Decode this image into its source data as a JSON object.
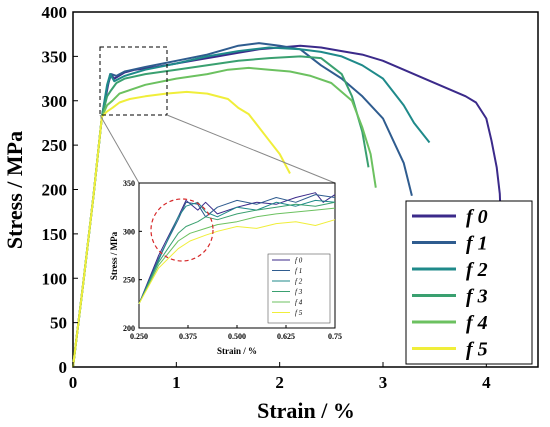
{
  "chart_data": [
    {
      "type": "line",
      "xlabel": "Strain / %",
      "ylabel": "Stress / MPa",
      "xlim": [
        0,
        4.5
      ],
      "ylim": [
        0,
        400
      ],
      "xticks": [
        "0",
        "1",
        "2",
        "3",
        "4"
      ],
      "yticks": [
        "0",
        "50",
        "100",
        "150",
        "200",
        "250",
        "300",
        "350",
        "400"
      ],
      "legend_position": "bottom-right",
      "grid": false,
      "series": [
        {
          "name": "f 0",
          "color": "#3b2a8a",
          "x": [
            0,
            0.1,
            0.2,
            0.28,
            0.33,
            0.36,
            0.4,
            0.5,
            0.6,
            0.8,
            1.0,
            1.2,
            1.4,
            1.6,
            1.8,
            2.0,
            2.2,
            2.4,
            2.6,
            2.8,
            3.0,
            3.2,
            3.4,
            3.6,
            3.8,
            3.9,
            4.0,
            4.05,
            4.1,
            4.13,
            4.15
          ],
          "y": [
            0,
            95,
            195,
            282,
            312,
            330,
            325,
            332,
            335,
            338,
            342,
            346,
            350,
            354,
            358,
            360,
            362,
            360,
            356,
            352,
            345,
            335,
            325,
            315,
            305,
            298,
            280,
            255,
            225,
            195,
            135
          ]
        },
        {
          "name": "f 1",
          "color": "#2f5c8f",
          "x": [
            0,
            0.1,
            0.2,
            0.28,
            0.33,
            0.37,
            0.42,
            0.5,
            0.7,
            1.0,
            1.3,
            1.6,
            1.8,
            2.0,
            2.2,
            2.4,
            2.6,
            2.8,
            3.0,
            3.1,
            3.2,
            3.28
          ],
          "y": [
            0,
            95,
            195,
            282,
            315,
            330,
            328,
            333,
            338,
            345,
            352,
            362,
            365,
            362,
            358,
            340,
            325,
            305,
            280,
            255,
            230,
            193
          ]
        },
        {
          "name": "f 2",
          "color": "#1f8a8a",
          "x": [
            0,
            0.1,
            0.2,
            0.28,
            0.33,
            0.36,
            0.4,
            0.5,
            0.7,
            1.0,
            1.3,
            1.6,
            1.9,
            2.2,
            2.4,
            2.6,
            2.8,
            3.0,
            3.1,
            3.2,
            3.3,
            3.45
          ],
          "y": [
            0,
            95,
            195,
            282,
            318,
            330,
            322,
            328,
            335,
            342,
            350,
            356,
            360,
            358,
            355,
            350,
            340,
            325,
            310,
            295,
            275,
            253
          ]
        },
        {
          "name": "f 3",
          "color": "#3aa070",
          "x": [
            0,
            0.1,
            0.2,
            0.28,
            0.33,
            0.37,
            0.42,
            0.5,
            0.7,
            1.0,
            1.3,
            1.6,
            1.9,
            2.2,
            2.4,
            2.6,
            2.7,
            2.8,
            2.86
          ],
          "y": [
            0,
            95,
            195,
            282,
            305,
            312,
            320,
            325,
            330,
            335,
            340,
            345,
            348,
            350,
            348,
            330,
            305,
            265,
            225
          ]
        },
        {
          "name": "f 4",
          "color": "#6cc160",
          "x": [
            0,
            0.1,
            0.2,
            0.28,
            0.33,
            0.38,
            0.45,
            0.55,
            0.7,
            1.0,
            1.3,
            1.5,
            1.7,
            1.9,
            2.1,
            2.3,
            2.5,
            2.7,
            2.8,
            2.88,
            2.93
          ],
          "y": [
            0,
            95,
            195,
            282,
            295,
            300,
            308,
            312,
            318,
            325,
            330,
            335,
            337,
            335,
            333,
            328,
            320,
            300,
            270,
            240,
            202
          ]
        },
        {
          "name": "f 5",
          "color": "#f0ee3a",
          "x": [
            0,
            0.1,
            0.2,
            0.28,
            0.33,
            0.38,
            0.45,
            0.55,
            0.7,
            0.9,
            1.1,
            1.3,
            1.5,
            1.6,
            1.7,
            1.8,
            1.9,
            2.0,
            2.1
          ],
          "y": [
            0,
            95,
            195,
            282,
            288,
            292,
            298,
            302,
            305,
            308,
            310,
            308,
            302,
            292,
            285,
            270,
            255,
            240,
            218
          ]
        }
      ]
    },
    {
      "type": "line",
      "xlabel": "Strain / %",
      "ylabel": "Stress / MPa",
      "xlim": [
        0.25,
        0.75
      ],
      "ylim": [
        200,
        350
      ],
      "xticks": [
        "0.250",
        "0.375",
        "0.500",
        "0.625",
        "0.75"
      ],
      "yticks": [
        "200",
        "250",
        "300",
        "350"
      ],
      "legend_position": "bottom-right",
      "series": [
        {
          "name": "f 0",
          "color": "#3b2a8a",
          "x": [
            0.25,
            0.3,
            0.35,
            0.37,
            0.4,
            0.42,
            0.45,
            0.5,
            0.55,
            0.6,
            0.65,
            0.7,
            0.72,
            0.75
          ],
          "y": [
            225,
            275,
            315,
            332,
            322,
            330,
            318,
            325,
            330,
            328,
            335,
            340,
            330,
            338
          ]
        },
        {
          "name": "f 1",
          "color": "#2f5c8f",
          "x": [
            0.25,
            0.3,
            0.35,
            0.37,
            0.4,
            0.42,
            0.45,
            0.5,
            0.55,
            0.6,
            0.65,
            0.7,
            0.75
          ],
          "y": [
            225,
            272,
            312,
            330,
            328,
            315,
            325,
            332,
            328,
            335,
            330,
            338,
            335
          ]
        },
        {
          "name": "f 2",
          "color": "#1f8a8a",
          "x": [
            0.25,
            0.3,
            0.35,
            0.37,
            0.4,
            0.42,
            0.45,
            0.5,
            0.55,
            0.6,
            0.65,
            0.7,
            0.75
          ],
          "y": [
            225,
            270,
            315,
            326,
            330,
            320,
            315,
            325,
            322,
            330,
            326,
            332,
            330
          ]
        },
        {
          "name": "f 3",
          "color": "#3aa070",
          "x": [
            0.25,
            0.3,
            0.35,
            0.37,
            0.4,
            0.42,
            0.45,
            0.5,
            0.55,
            0.6,
            0.65,
            0.7,
            0.75
          ],
          "y": [
            225,
            268,
            298,
            305,
            310,
            315,
            312,
            318,
            322,
            325,
            328,
            326,
            330
          ]
        },
        {
          "name": "f 4",
          "color": "#6cc160",
          "x": [
            0.25,
            0.3,
            0.35,
            0.38,
            0.42,
            0.45,
            0.5,
            0.55,
            0.6,
            0.65,
            0.7,
            0.75
          ],
          "y": [
            225,
            265,
            290,
            298,
            303,
            307,
            310,
            315,
            318,
            320,
            322,
            324
          ]
        },
        {
          "name": "f 5",
          "color": "#f0ee3a",
          "x": [
            0.25,
            0.3,
            0.35,
            0.38,
            0.42,
            0.45,
            0.5,
            0.55,
            0.6,
            0.65,
            0.7,
            0.75
          ],
          "y": [
            225,
            262,
            282,
            290,
            296,
            300,
            305,
            303,
            308,
            310,
            306,
            312
          ]
        }
      ]
    }
  ]
}
